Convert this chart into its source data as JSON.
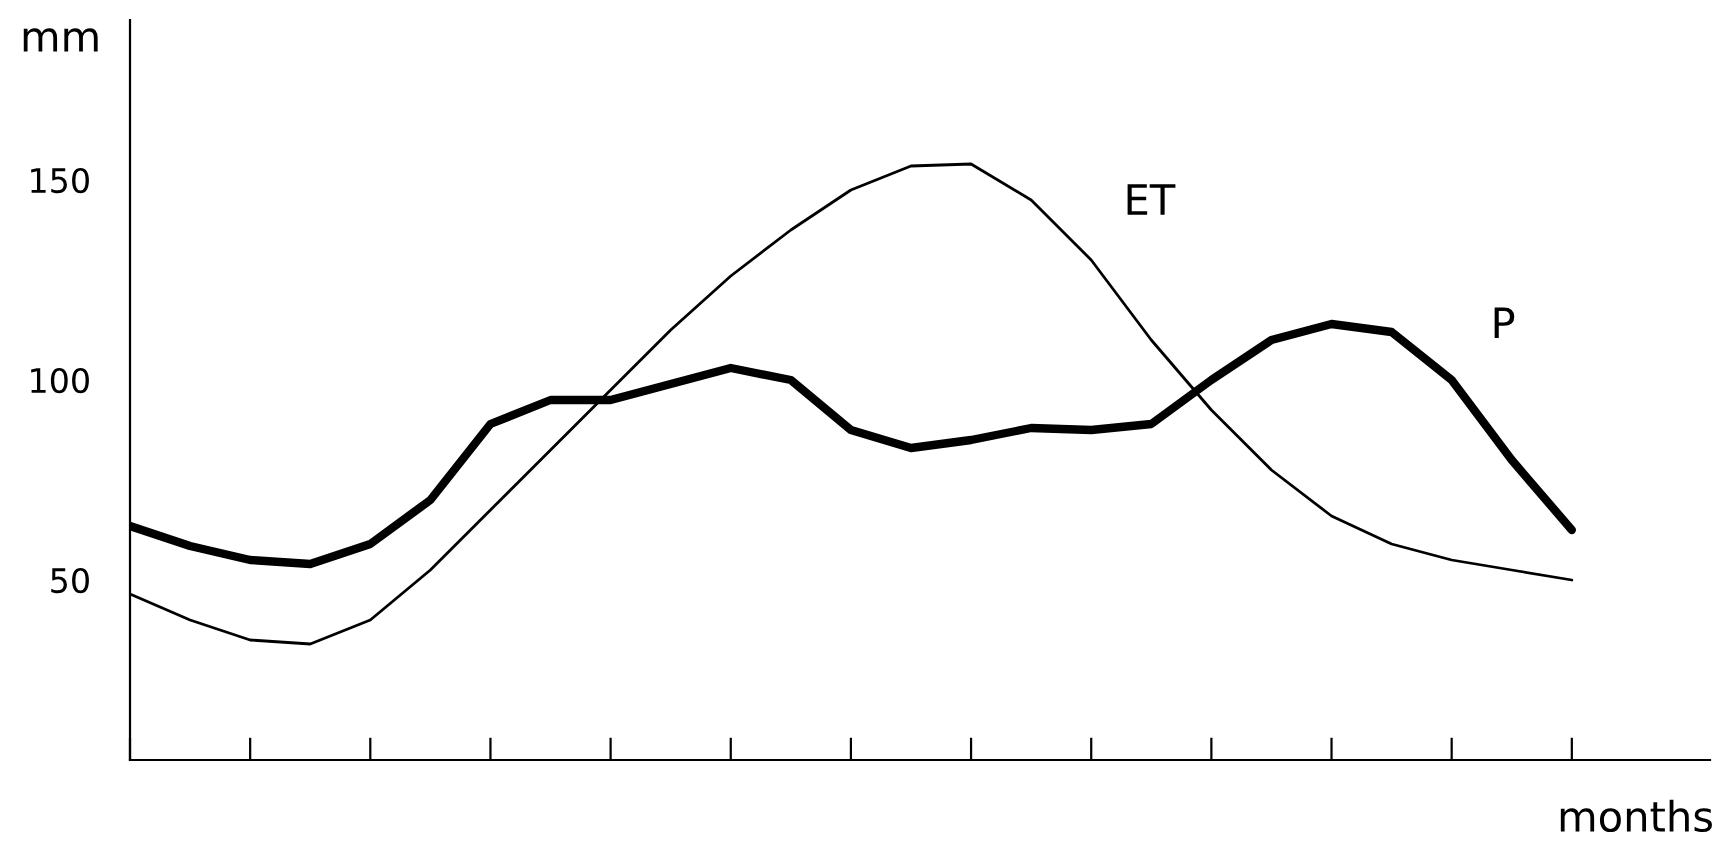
{
  "chart_data": {
    "type": "line",
    "ylabel": "mm",
    "xlabel": "months",
    "categories": [
      null,
      null,
      null,
      null,
      null,
      null,
      null,
      null,
      null,
      null,
      null,
      null,
      null,
      null,
      null,
      null,
      null,
      null,
      null,
      null,
      null,
      null,
      null,
      null,
      null
    ],
    "series": [
      {
        "name": "ET",
        "color": "#000000",
        "values": [
          46.5,
          40,
          35,
          34,
          40,
          52.5,
          67.5,
          82.5,
          97.5,
          112.5,
          126,
          137.5,
          147.5,
          153.5,
          154,
          145,
          130,
          110,
          92.5,
          77.5,
          66,
          59,
          55,
          52.5,
          50
        ]
      },
      {
        "name": "P",
        "color": "#000000",
        "values": [
          63.5,
          58.5,
          55,
          54,
          59,
          70,
          89,
          95,
          95,
          99,
          103,
          100,
          87.5,
          83,
          85,
          88,
          87.5,
          89,
          100,
          110,
          114,
          112,
          100,
          80,
          62.5
        ]
      }
    ],
    "ylim": [
      5,
      190
    ],
    "yticks": [
      50,
      100,
      150
    ],
    "grid": false,
    "legend": false,
    "marker": "none",
    "line_style": "solid"
  }
}
